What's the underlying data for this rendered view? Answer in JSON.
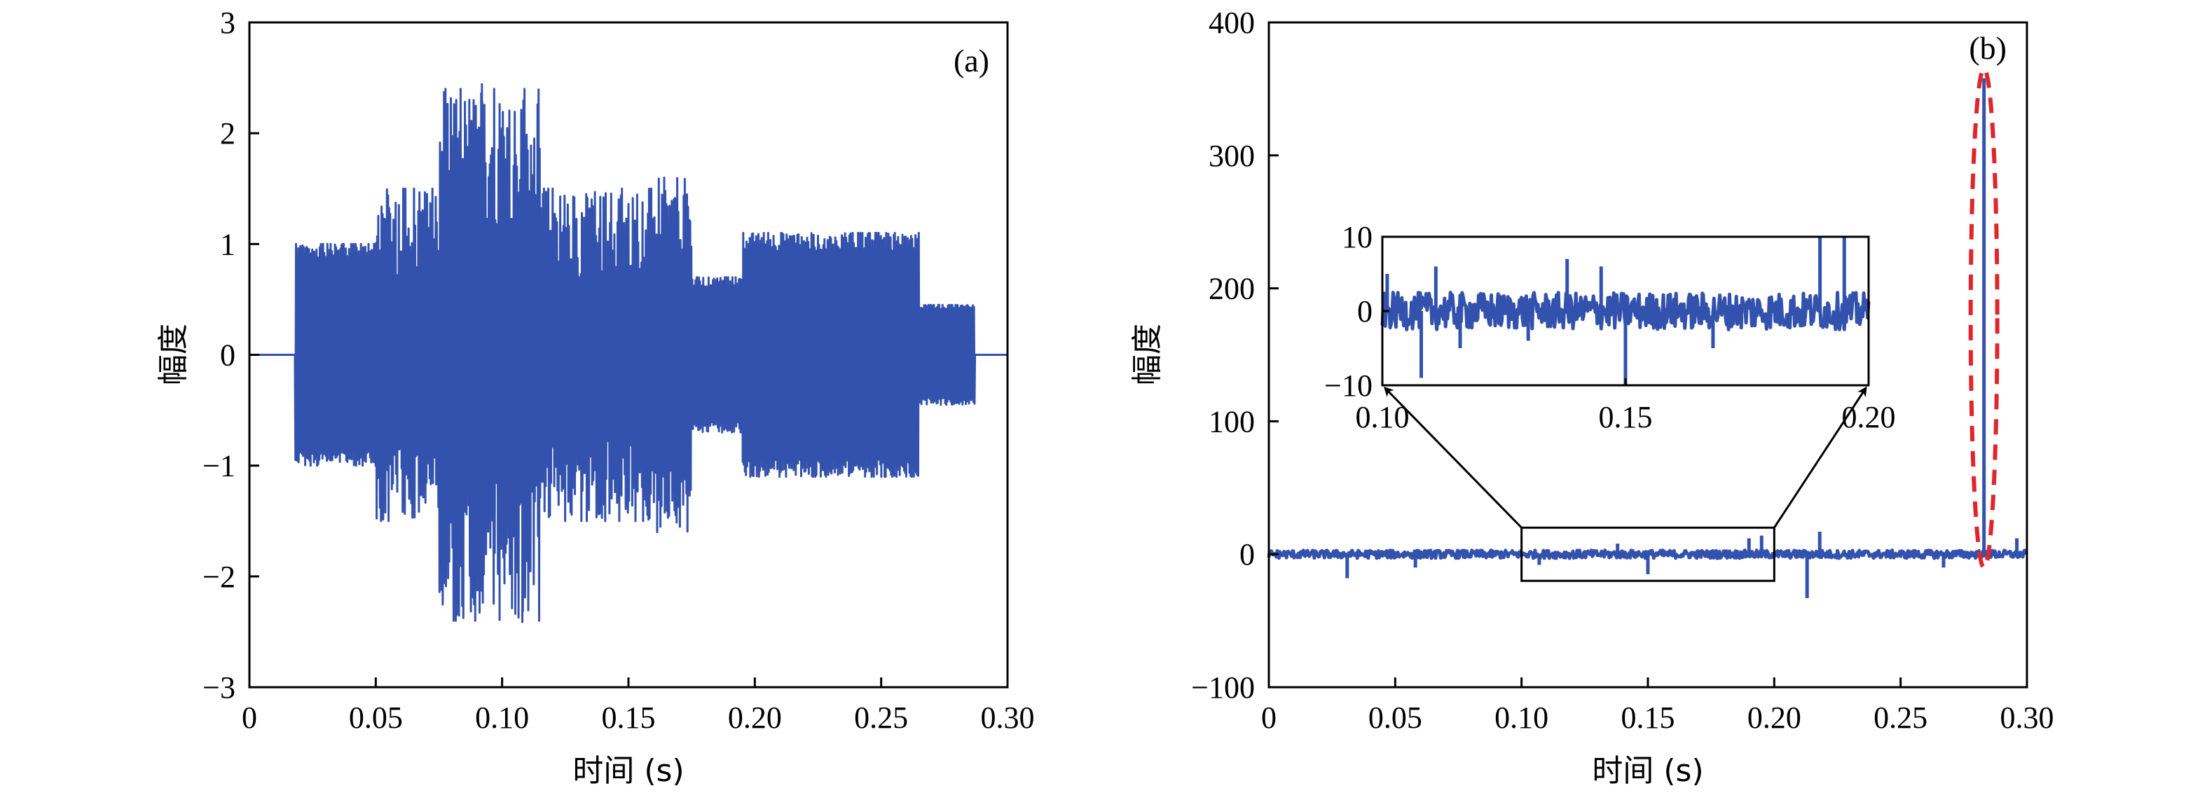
{
  "chart_data": [
    {
      "type": "line",
      "panel": "(a)",
      "xlabel": "时间 (s)",
      "ylabel": "幅度",
      "xlim": [
        0,
        0.3
      ],
      "ylim": [
        -3,
        3
      ],
      "xticks": [
        0,
        0.05,
        0.1,
        0.15,
        0.2,
        0.25,
        0.3
      ],
      "xtick_labels": [
        "0",
        "0.05",
        "0.10",
        "0.15",
        "0.20",
        "0.25",
        "0.30"
      ],
      "yticks": [
        -3,
        -2,
        -1,
        0,
        1,
        2,
        3
      ],
      "ytick_labels": [
        "−3",
        "−2",
        "−1",
        "0",
        "1",
        "2",
        "3"
      ],
      "series_color": "#3352ad",
      "segments": [
        {
          "x": [
            0.0,
            0.018
          ],
          "amplitude": 0.0
        },
        {
          "x": [
            0.018,
            0.05
          ],
          "amplitude": 1.0
        },
        {
          "x": [
            0.05,
            0.075
          ],
          "amplitude": 1.5
        },
        {
          "x": [
            0.075,
            0.115
          ],
          "amplitude": 2.4
        },
        {
          "x": [
            0.115,
            0.16
          ],
          "amplitude": 1.5
        },
        {
          "x": [
            0.16,
            0.175
          ],
          "amplitude": 1.6
        },
        {
          "x": [
            0.175,
            0.195
          ],
          "amplitude": 0.7
        },
        {
          "x": [
            0.195,
            0.245
          ],
          "amplitude": 1.1
        },
        {
          "x": [
            0.245,
            0.265
          ],
          "amplitude": 1.1
        },
        {
          "x": [
            0.265,
            0.287
          ],
          "amplitude": 0.45
        },
        {
          "x": [
            0.287,
            0.3
          ],
          "amplitude": 0.0
        }
      ],
      "peaks": [
        {
          "x": 0.077,
          "y": 2.38
        },
        {
          "x": 0.092,
          "y": 2.45
        },
        {
          "x": 0.099,
          "y": -2.4
        },
        {
          "x": 0.108,
          "y": -2.42
        }
      ]
    },
    {
      "type": "line",
      "panel": "(b)",
      "xlabel": "时间 (s)",
      "ylabel": "幅度",
      "xlim": [
        0,
        0.3
      ],
      "ylim": [
        -100,
        400
      ],
      "xticks": [
        0,
        0.05,
        0.1,
        0.15,
        0.2,
        0.25,
        0.3
      ],
      "xtick_labels": [
        "0",
        "0.05",
        "0.10",
        "0.15",
        "0.20",
        "0.25",
        "0.30"
      ],
      "yticks": [
        -100,
        0,
        100,
        200,
        300,
        400
      ],
      "ytick_labels": [
        "−100",
        "0",
        "100",
        "200",
        "300",
        "400"
      ],
      "series_color": "#3352ad",
      "baseline_noise": 3,
      "spikes": [
        {
          "x": 0.031,
          "y": -18
        },
        {
          "x": 0.058,
          "y": -10
        },
        {
          "x": 0.107,
          "y": -8
        },
        {
          "x": 0.138,
          "y": 8
        },
        {
          "x": 0.15,
          "y": -15
        },
        {
          "x": 0.19,
          "y": 12
        },
        {
          "x": 0.195,
          "y": 14
        },
        {
          "x": 0.213,
          "y": -33
        },
        {
          "x": 0.218,
          "y": 17
        },
        {
          "x": 0.267,
          "y": -10
        },
        {
          "x": 0.283,
          "y": 358
        },
        {
          "x": 0.296,
          "y": 12
        }
      ],
      "zoom_region": {
        "x": [
          0.1,
          0.2
        ],
        "y": [
          -20,
          20
        ]
      },
      "highlight": {
        "x": 0.283,
        "y_range": [
          -10,
          365
        ],
        "color": "#e0262a",
        "style": "dashed"
      },
      "inset": {
        "xlim": [
          0.1,
          0.2
        ],
        "ylim": [
          -10,
          10
        ],
        "xticks": [
          0.1,
          0.15,
          0.2
        ],
        "xtick_labels": [
          "0.10",
          "0.15",
          "0.20"
        ],
        "yticks": [
          -10,
          0,
          10
        ],
        "ytick_labels": [
          "−10",
          "0",
          "10"
        ],
        "spikes": [
          {
            "x": 0.101,
            "y": 5
          },
          {
            "x": 0.108,
            "y": -9
          },
          {
            "x": 0.111,
            "y": 6
          },
          {
            "x": 0.116,
            "y": -5
          },
          {
            "x": 0.13,
            "y": -4
          },
          {
            "x": 0.138,
            "y": 7
          },
          {
            "x": 0.145,
            "y": 6
          },
          {
            "x": 0.15,
            "y": -10
          },
          {
            "x": 0.168,
            "y": -5
          },
          {
            "x": 0.19,
            "y": 10
          },
          {
            "x": 0.195,
            "y": 10
          }
        ]
      }
    }
  ]
}
